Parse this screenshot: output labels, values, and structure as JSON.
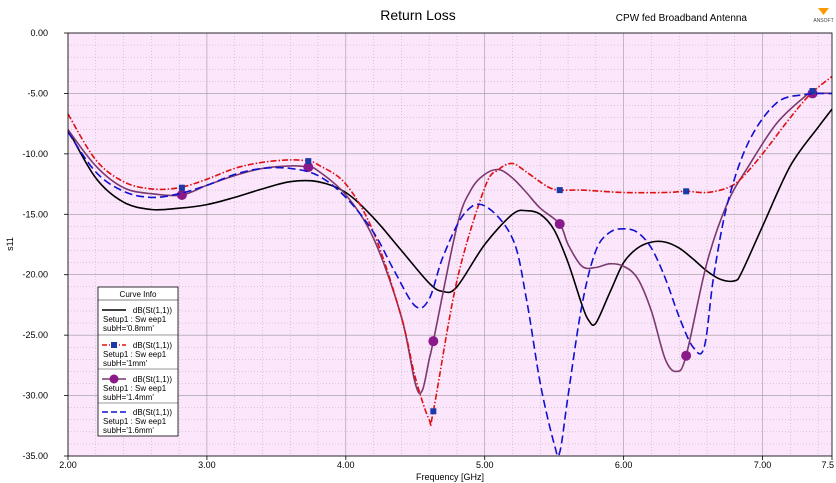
{
  "header": {
    "title": "Return Loss",
    "design_name": "CPW fed Broadband Antenna",
    "logo_text": "ANSOFT"
  },
  "legend": {
    "title": "Curve Info",
    "entries": [
      {
        "line1": "dB(St(1,1))",
        "line2": "Setup1 : Sw eep1",
        "line3": "subH='0.8mm'"
      },
      {
        "line1": "dB(St(1,1))",
        "line2": "Setup1 : Sw eep1",
        "line3": "subH='1mm'"
      },
      {
        "line1": "dB(St(1,1))",
        "line2": "Setup1 : Sw eep1",
        "line3": "subH='1.4mm'"
      },
      {
        "line1": "dB(St(1,1))",
        "line2": "Setup1 : Sw eep1",
        "line3": "subH='1.6mm'"
      }
    ]
  },
  "colors": {
    "plot_background": "#fce6fc",
    "grid": "#9a9a9a",
    "series": [
      "#000000",
      "#e01010",
      "#7a3a6e",
      "#1010d0"
    ],
    "markers": [
      "",
      "#1a3aa8",
      "#8a1a8a",
      ""
    ]
  },
  "chart_data": {
    "type": "line",
    "title": "Return Loss",
    "xlabel": "Frequency [GHz]",
    "ylabel": "s11",
    "xlim": [
      2.0,
      7.5
    ],
    "ylim": [
      -35.0,
      0.0
    ],
    "x_ticks": [
      "2.00",
      "3.00",
      "4.00",
      "5.00",
      "6.00",
      "7.00",
      "7.5"
    ],
    "y_ticks": [
      "0.00",
      "-5.00",
      "-10.00",
      "-15.00",
      "-20.00",
      "-25.00",
      "-30.00",
      "-35.00"
    ],
    "grid": true,
    "legend_position": "bottom-left",
    "series": [
      {
        "name": "dB(St(1,1)) Setup1 : Sw eep1 subH='0.8mm'",
        "style": "solid",
        "marker": "none",
        "x": [
          2.0,
          2.2,
          2.4,
          2.6,
          2.8,
          3.0,
          3.2,
          3.4,
          3.6,
          3.8,
          4.0,
          4.2,
          4.4,
          4.6,
          4.7,
          4.8,
          5.0,
          5.2,
          5.3,
          5.4,
          5.5,
          5.6,
          5.7,
          5.75,
          5.8,
          5.9,
          6.0,
          6.1,
          6.2,
          6.3,
          6.4,
          6.5,
          6.6,
          6.7,
          6.8,
          6.85,
          7.0,
          7.2,
          7.4,
          7.5
        ],
        "y": [
          -8.0,
          -12.0,
          -14.0,
          -14.6,
          -14.5,
          -14.2,
          -13.6,
          -12.9,
          -12.3,
          -12.3,
          -13.2,
          -15.3,
          -18.0,
          -20.7,
          -21.4,
          -21.0,
          -17.5,
          -15.0,
          -14.7,
          -15.0,
          -16.3,
          -19.0,
          -22.5,
          -23.8,
          -24.0,
          -21.5,
          -19.0,
          -17.8,
          -17.3,
          -17.3,
          -17.8,
          -18.7,
          -19.7,
          -20.4,
          -20.5,
          -19.8,
          -16.0,
          -11.0,
          -7.8,
          -6.3
        ]
      },
      {
        "name": "dB(St(1,1)) Setup1 : Sw eep1 subH='1mm'",
        "style": "dash-dot",
        "marker": "square",
        "x": [
          2.0,
          2.2,
          2.4,
          2.6,
          2.8,
          3.0,
          3.2,
          3.4,
          3.6,
          3.73,
          3.8,
          4.0,
          4.2,
          4.4,
          4.5,
          4.6,
          4.63,
          4.8,
          5.0,
          5.1,
          5.2,
          5.3,
          5.45,
          5.54,
          5.7,
          6.0,
          6.3,
          6.45,
          6.6,
          6.75,
          6.85,
          7.0,
          7.2,
          7.35,
          7.5
        ],
        "y": [
          -6.7,
          -10.5,
          -12.3,
          -12.9,
          -12.8,
          -12.1,
          -11.2,
          -10.7,
          -10.5,
          -10.6,
          -10.9,
          -12.5,
          -16.5,
          -23.5,
          -28.5,
          -32.0,
          -31.3,
          -20.5,
          -12.8,
          -11.3,
          -10.8,
          -11.5,
          -12.7,
          -13.0,
          -13.0,
          -13.2,
          -13.2,
          -13.1,
          -13.2,
          -12.8,
          -12.0,
          -10.0,
          -7.0,
          -5.0,
          -3.6
        ],
        "markers_x": [
          2.82,
          3.73,
          4.63,
          5.54,
          6.45,
          7.36
        ],
        "markers_y": [
          -12.8,
          -10.6,
          -31.3,
          -13.0,
          -13.1,
          -4.8
        ]
      },
      {
        "name": "dB(St(1,1)) Setup1 : Sw eep1 subH='1.4mm'",
        "style": "solid",
        "marker": "circle",
        "x": [
          2.0,
          2.2,
          2.4,
          2.6,
          2.82,
          3.0,
          3.2,
          3.4,
          3.6,
          3.73,
          3.8,
          4.0,
          4.2,
          4.4,
          4.5,
          4.55,
          4.6,
          4.63,
          4.8,
          4.9,
          5.0,
          5.1,
          5.2,
          5.3,
          5.4,
          5.54,
          5.6,
          5.7,
          5.8,
          5.9,
          6.0,
          6.1,
          6.2,
          6.3,
          6.38,
          6.45,
          6.6,
          6.75,
          6.9,
          7.1,
          7.3,
          7.36,
          7.5
        ],
        "y": [
          -8.0,
          -11.0,
          -12.8,
          -13.3,
          -13.4,
          -12.6,
          -11.8,
          -11.2,
          -11.0,
          -11.1,
          -11.4,
          -13.4,
          -17.0,
          -23.5,
          -29.0,
          -29.6,
          -27.0,
          -25.5,
          -16.0,
          -13.0,
          -11.7,
          -11.3,
          -12.0,
          -13.2,
          -14.5,
          -15.8,
          -17.5,
          -19.3,
          -19.4,
          -19.1,
          -19.3,
          -20.3,
          -23.0,
          -27.0,
          -28.0,
          -26.7,
          -19.0,
          -14.0,
          -11.0,
          -7.5,
          -5.3,
          -5.0,
          -5.0
        ],
        "markers_x": [
          2.82,
          3.73,
          4.63,
          5.54,
          6.45,
          7.36
        ],
        "markers_y": [
          -13.4,
          -11.1,
          -25.5,
          -15.8,
          -26.7,
          -5.0
        ]
      },
      {
        "name": "dB(St(1,1)) Setup1 : Sw eep1 subH='1.6mm'",
        "style": "dashed",
        "marker": "none",
        "x": [
          2.0,
          2.2,
          2.4,
          2.6,
          2.8,
          3.0,
          3.2,
          3.4,
          3.6,
          3.8,
          4.0,
          4.2,
          4.35,
          4.5,
          4.6,
          4.7,
          4.85,
          5.0,
          5.2,
          5.3,
          5.4,
          5.5,
          5.54,
          5.6,
          5.7,
          5.8,
          5.9,
          6.0,
          6.1,
          6.2,
          6.3,
          6.4,
          6.5,
          6.58,
          6.65,
          6.75,
          6.9,
          7.1,
          7.3,
          7.5
        ],
        "y": [
          -8.2,
          -11.5,
          -13.1,
          -13.6,
          -13.3,
          -12.6,
          -11.7,
          -11.2,
          -11.2,
          -11.8,
          -13.6,
          -16.5,
          -19.7,
          -22.6,
          -22.0,
          -18.5,
          -15.0,
          -14.3,
          -17.0,
          -22.0,
          -29.0,
          -34.0,
          -34.7,
          -30.0,
          -22.5,
          -18.0,
          -16.5,
          -16.2,
          -16.5,
          -17.8,
          -20.3,
          -23.5,
          -26.0,
          -26.0,
          -20.0,
          -14.0,
          -9.0,
          -5.8,
          -5.1,
          -5.0
        ]
      }
    ]
  }
}
